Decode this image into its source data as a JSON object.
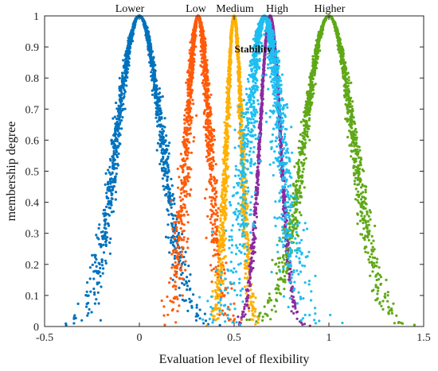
{
  "chart_data": {
    "type": "scatter",
    "xlabel": "Evaluation level of flexibility",
    "ylabel": "membership degree",
    "xlim": [
      -0.5,
      1.5
    ],
    "ylim": [
      0,
      1
    ],
    "xticks": [
      -0.5,
      0,
      0.5,
      1,
      1.5
    ],
    "xtick_labels": [
      "-0.5",
      "0",
      "0.5",
      "1",
      "1.5"
    ],
    "yticks": [
      0,
      0.1,
      0.2,
      0.3,
      0.4,
      0.5,
      0.6,
      0.7,
      0.8,
      0.9,
      1
    ],
    "ytick_labels": [
      "0",
      "0.1",
      "0.2",
      "0.3",
      "0.4",
      "0.5",
      "0.6",
      "0.7",
      "0.8",
      "0.9",
      "1"
    ],
    "grid": false,
    "legend": "none",
    "series": [
      {
        "name": "Lower",
        "color": "#0072BD",
        "expectation": 0.0,
        "entropy": 0.12,
        "hyper_entropy": 0.012
      },
      {
        "name": "Low",
        "color": "#FF5A0A",
        "expectation": 0.31,
        "entropy": 0.06,
        "hyper_entropy": 0.012
      },
      {
        "name": "Medium",
        "color": "#FFB000",
        "expectation": 0.5,
        "entropy": 0.04,
        "hyper_entropy": 0.006
      },
      {
        "name": "High",
        "color": "#8B2CA0",
        "expectation": 0.69,
        "entropy": 0.055,
        "hyper_entropy": 0.003
      },
      {
        "name": "Higher",
        "color": "#5FA817",
        "expectation": 1.0,
        "entropy": 0.13,
        "hyper_entropy": 0.012
      },
      {
        "name": "Stability",
        "color": "#1EBEF0",
        "expectation": 0.66,
        "entropy": 0.085,
        "hyper_entropy": 0.025
      }
    ]
  }
}
